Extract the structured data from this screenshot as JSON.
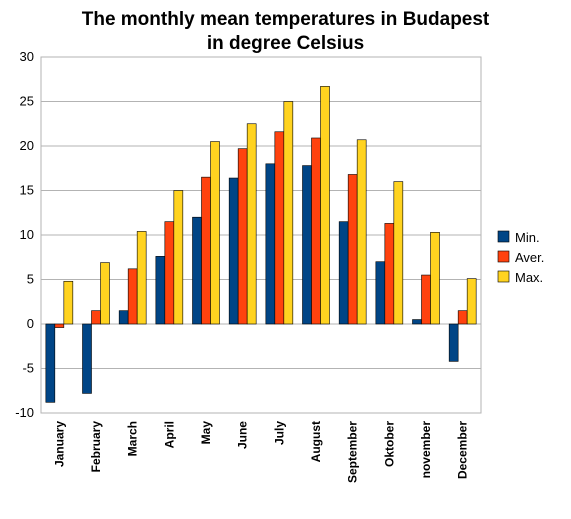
{
  "chart_data": {
    "type": "bar",
    "title": "The monthly mean temperatures in Budapest",
    "subtitle": "in degree Celsius",
    "xlabel": "",
    "ylabel": "",
    "ylim": [
      -10,
      30
    ],
    "yticks": [
      30,
      25,
      20,
      15,
      10,
      5,
      0,
      -5,
      -10
    ],
    "grid": true,
    "legend_position": "right",
    "categories": [
      "January",
      "February",
      "March",
      "April",
      "May",
      "June",
      "July",
      "August",
      "September",
      "Oktober",
      "november",
      "December"
    ],
    "series": [
      {
        "name": "Min.",
        "color": "#004586",
        "values": [
          -8.8,
          -7.8,
          1.5,
          7.6,
          12.0,
          16.4,
          18.0,
          17.8,
          11.5,
          7.0,
          0.5,
          -4.2
        ]
      },
      {
        "name": "Aver.",
        "color": "#ff420e",
        "values": [
          -0.4,
          1.5,
          6.2,
          11.5,
          16.5,
          19.7,
          21.6,
          20.9,
          16.8,
          11.3,
          5.5,
          1.5
        ]
      },
      {
        "name": "Max.",
        "color": "#ffd320",
        "values": [
          4.8,
          6.9,
          10.4,
          15.0,
          20.5,
          22.5,
          25.0,
          26.7,
          20.7,
          16.0,
          10.3,
          5.1
        ]
      }
    ]
  }
}
